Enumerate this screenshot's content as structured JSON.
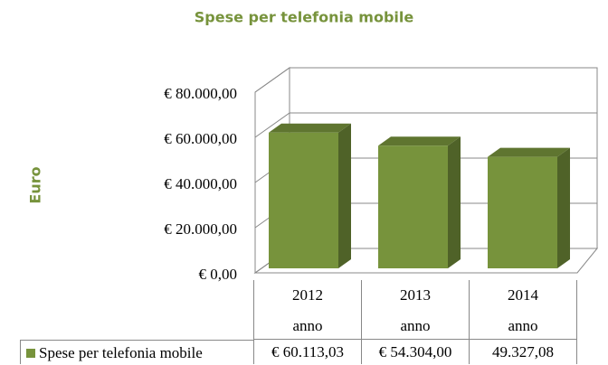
{
  "chart_data": {
    "type": "bar3d",
    "title": "Spese per telefonia mobile",
    "y_label": "Euro",
    "categories": [
      "2012\nanno",
      "2013\nanno",
      "2014\nanno"
    ],
    "series": [
      {
        "name": "Spese per telefonia mobile",
        "color": "#77933c",
        "values": [
          60113.03,
          54304.0,
          49327.08
        ],
        "value_labels": [
          "€ 60.113,03",
          "€ 54.304,00",
          "49.327,08"
        ]
      }
    ],
    "ylim": [
      0,
      80000
    ],
    "yticks": [
      {
        "value": 0,
        "label": "€ 0,00"
      },
      {
        "value": 20000,
        "label": "€ 20.000,00"
      },
      {
        "value": 40000,
        "label": "€ 40.000,00"
      },
      {
        "value": 60000,
        "label": "€ 60.000,00"
      },
      {
        "value": 80000,
        "label": "€ 80.000,00"
      }
    ],
    "grid": true
  }
}
